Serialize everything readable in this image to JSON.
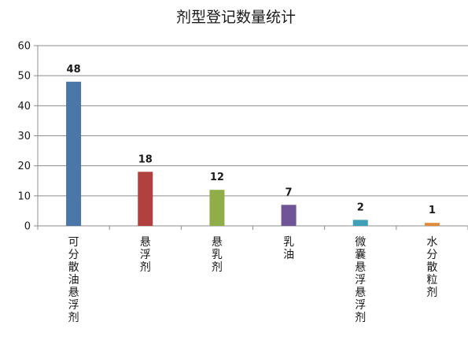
{
  "chart_data": {
    "type": "bar",
    "title": "剂型登记数量统计",
    "categories": [
      "可分散油悬浮剂",
      "悬浮剂",
      "悬乳剂",
      "乳油",
      "微囊悬浮悬浮剂",
      "水分散粒剂"
    ],
    "values": [
      48,
      18,
      12,
      7,
      2,
      1
    ],
    "colors": [
      "#4a76a8",
      "#b0413e",
      "#8fae4a",
      "#6f5597",
      "#3fa0b8",
      "#e08a3a"
    ],
    "ylim": [
      0,
      60
    ],
    "yticks": [
      0,
      10,
      20,
      30,
      40,
      50,
      60
    ],
    "grid": true,
    "legend": "none"
  }
}
